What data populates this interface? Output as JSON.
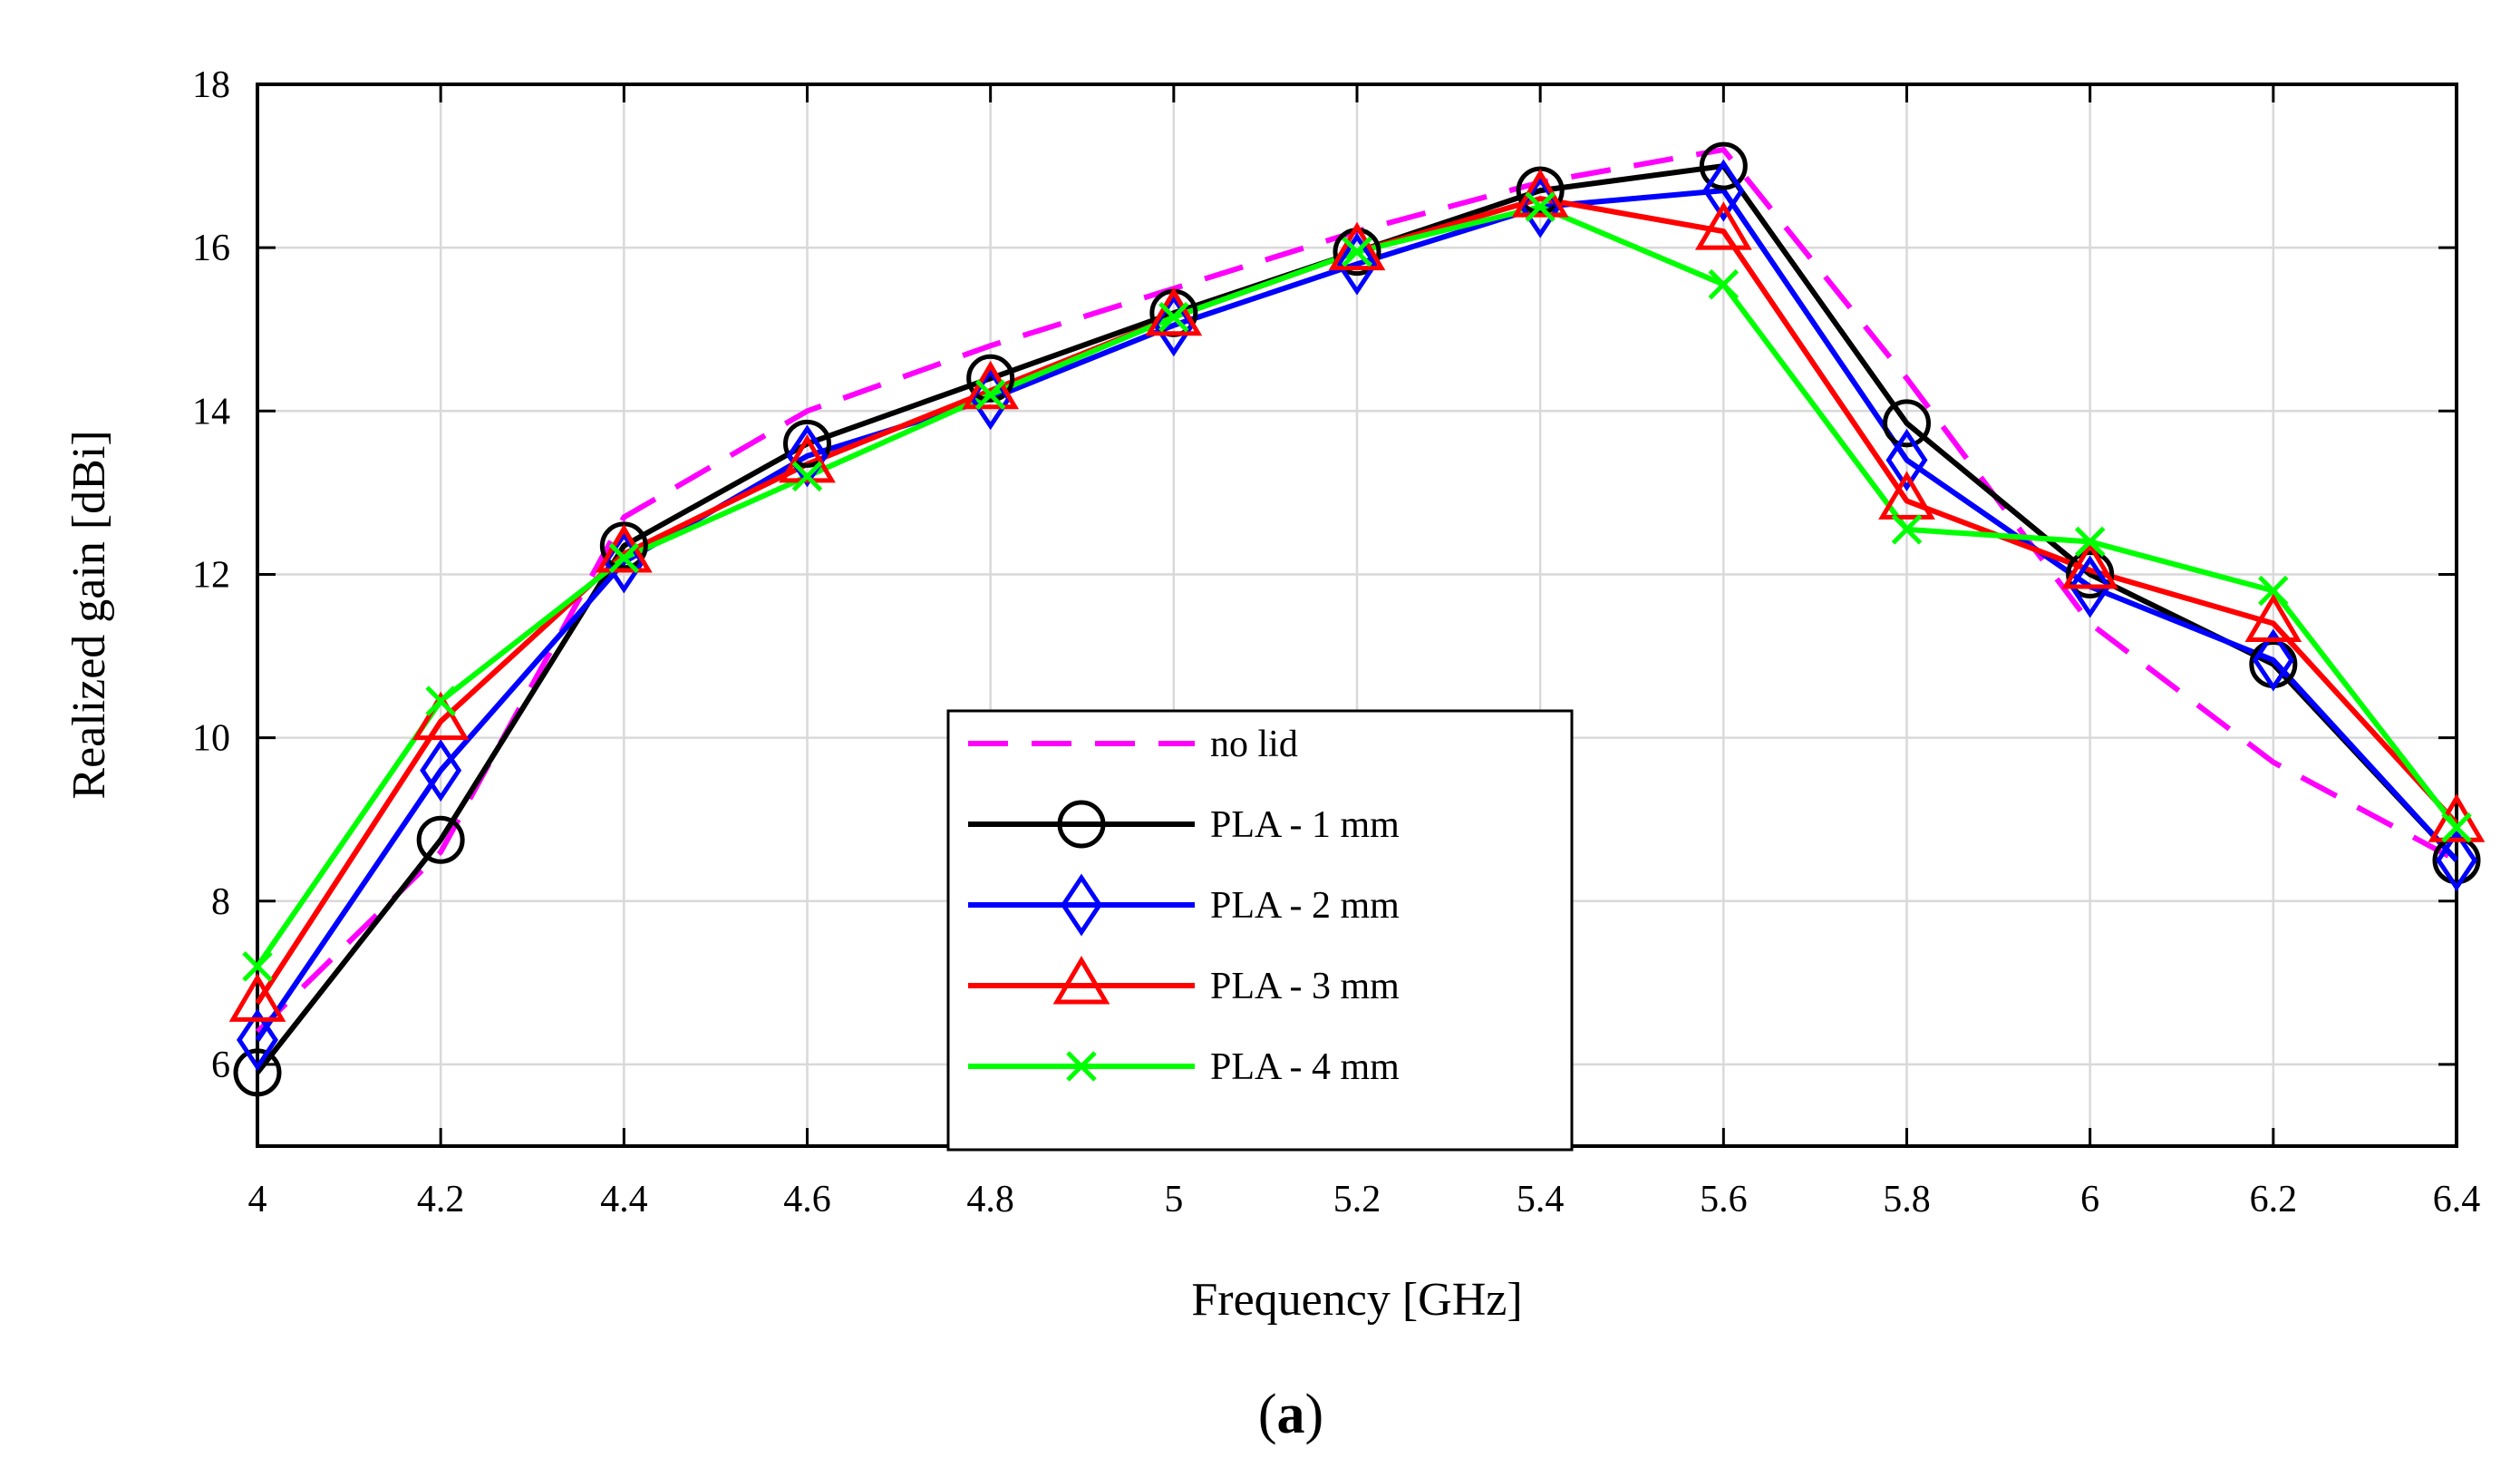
{
  "chart_data": {
    "type": "line",
    "title": "",
    "xlabel": "Frequency [GHz]",
    "ylabel": "Realized gain [dBi]",
    "xlim": [
      4,
      6.4
    ],
    "ylim": [
      5,
      18
    ],
    "x_ticks": [
      4,
      4.2,
      4.4,
      4.6,
      4.8,
      5,
      5.2,
      5.4,
      5.6,
      5.8,
      6,
      6.2,
      6.4
    ],
    "x_tick_labels": [
      "4",
      "4.2",
      "4.4",
      "4.6",
      "4.8",
      "5",
      "5.2",
      "5.4",
      "5.6",
      "5.8",
      "6",
      "6.2",
      "6.4"
    ],
    "y_ticks": [
      6,
      8,
      10,
      12,
      14,
      16,
      18
    ],
    "y_tick_labels": [
      "6",
      "8",
      "10",
      "12",
      "14",
      "16",
      "18"
    ],
    "grid": true,
    "legend_position": "bottom-center",
    "caption_open": "(",
    "caption_letter": "a",
    "caption_close": ")",
    "x": [
      4,
      4.2,
      4.4,
      4.6,
      4.8,
      5,
      5.2,
      5.4,
      5.6,
      5.8,
      6,
      6.2,
      6.4
    ],
    "series": [
      {
        "name": "no lid",
        "color": "#ff00ff",
        "dash": true,
        "marker": "none",
        "values": [
          6.4,
          8.6,
          12.7,
          14.0,
          14.8,
          15.5,
          16.2,
          16.8,
          17.2,
          14.4,
          11.4,
          9.7,
          8.5
        ]
      },
      {
        "name": "PLA - 1 mm",
        "color": "#000000",
        "dash": false,
        "marker": "circle",
        "values": [
          5.9,
          8.75,
          12.35,
          13.6,
          14.4,
          15.2,
          15.95,
          16.7,
          17.0,
          13.85,
          12.0,
          10.9,
          8.5
        ]
      },
      {
        "name": "PLA - 2 mm",
        "color": "#0000ff",
        "dash": false,
        "marker": "diamond",
        "values": [
          6.3,
          9.6,
          12.15,
          13.45,
          14.15,
          15.05,
          15.8,
          16.5,
          16.7,
          13.4,
          11.85,
          10.95,
          8.5
        ]
      },
      {
        "name": "PLA - 3 mm",
        "color": "#ff0000",
        "dash": false,
        "marker": "triangle",
        "values": [
          6.75,
          10.2,
          12.25,
          13.35,
          14.25,
          15.15,
          15.95,
          16.6,
          16.2,
          12.9,
          12.05,
          11.4,
          8.95
        ]
      },
      {
        "name": "PLA - 4 mm",
        "color": "#00ff00",
        "dash": false,
        "marker": "x",
        "values": [
          7.2,
          10.45,
          12.2,
          13.2,
          14.2,
          15.15,
          15.95,
          16.5,
          15.55,
          12.55,
          12.4,
          11.8,
          8.9
        ]
      }
    ]
  }
}
